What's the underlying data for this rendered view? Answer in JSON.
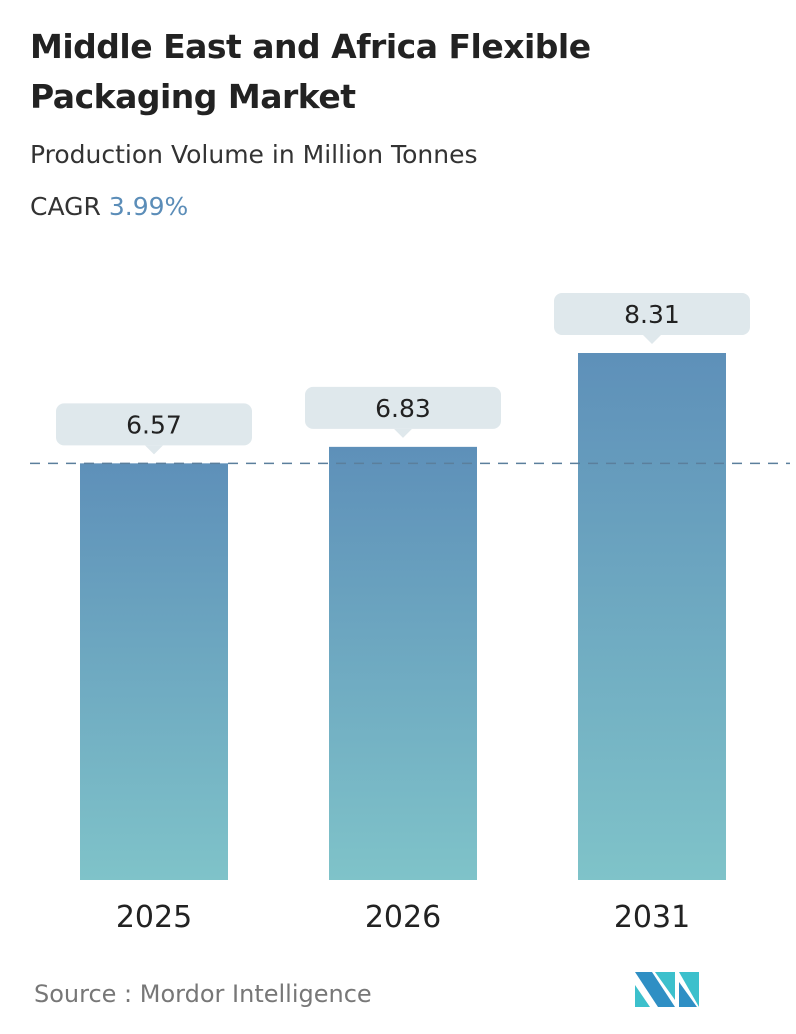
{
  "title": "Middle East and Africa Flexible Packaging Market",
  "subtitle": "Production Volume in Million Tonnes",
  "cagr_label": "CAGR",
  "cagr_value": "3.99%",
  "source": "Source :  Mordor Intelligence",
  "colors": {
    "bar_top": "#5e90b9",
    "bar_bottom": "#7fc3c9",
    "label_box": "#dfe8ec",
    "cagr": "#5b8db8",
    "reference_line": "#5b7f9c"
  },
  "chart_data": {
    "type": "bar",
    "categories": [
      "2025",
      "2026",
      "2031"
    ],
    "values": [
      6.57,
      6.83,
      8.31
    ],
    "data_labels": [
      "6.57",
      "6.83",
      "8.31"
    ],
    "reference_line": {
      "value": 6.57,
      "style": "dashed"
    },
    "grid": false,
    "ylim": [
      0,
      8.31
    ]
  }
}
